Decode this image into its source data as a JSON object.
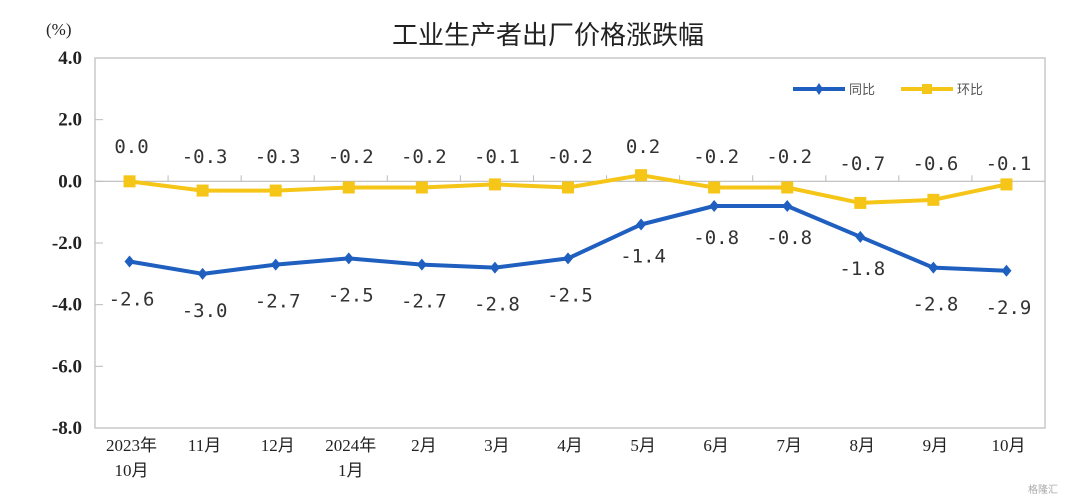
{
  "chart_data": {
    "type": "line",
    "title": "工业生产者出厂价格涨跌幅",
    "ylabel": "(%)",
    "ylim": [
      -8.0,
      4.0
    ],
    "yticks": [
      "4.0",
      "2.0",
      "0.0",
      "-2.0",
      "-4.0",
      "-6.0",
      "-8.0"
    ],
    "ytick_values": [
      4,
      2,
      0,
      -2,
      -4,
      -6,
      -8
    ],
    "categories": [
      [
        "2023年",
        "10月"
      ],
      [
        "11月"
      ],
      [
        "12月"
      ],
      [
        "2024年",
        "1月"
      ],
      [
        "2月"
      ],
      [
        "3月"
      ],
      [
        "4月"
      ],
      [
        "5月"
      ],
      [
        "6月"
      ],
      [
        "7月"
      ],
      [
        "8月"
      ],
      [
        "9月"
      ],
      [
        "10月"
      ]
    ],
    "legend_position": "top-right",
    "grid": false,
    "series": [
      {
        "name": "同比",
        "color": "#1f5fbf",
        "marker": "diamond",
        "values": [
          -2.6,
          -3.0,
          -2.7,
          -2.5,
          -2.7,
          -2.8,
          -2.5,
          -1.4,
          -0.8,
          -0.8,
          -1.8,
          -2.8,
          -2.9
        ],
        "labels": [
          "-2.6",
          "-3.0",
          "-2.7",
          "-2.5",
          "-2.7",
          "-2.8",
          "-2.5",
          "-1.4",
          "-0.8",
          "-0.8",
          "-1.8",
          "-2.8",
          "-2.9"
        ]
      },
      {
        "name": "环比",
        "color": "#f5c518",
        "marker": "square",
        "values": [
          0.0,
          -0.3,
          -0.3,
          -0.2,
          -0.2,
          -0.1,
          -0.2,
          0.2,
          -0.2,
          -0.2,
          -0.7,
          -0.6,
          -0.1
        ],
        "labels": [
          "0.0",
          "-0.3",
          "-0.3",
          "-0.2",
          "-0.2",
          "-0.1",
          "-0.2",
          "0.2",
          "-0.2",
          "-0.2",
          "-0.7",
          "-0.6",
          "-0.1"
        ]
      }
    ]
  },
  "watermark": "格隆汇"
}
